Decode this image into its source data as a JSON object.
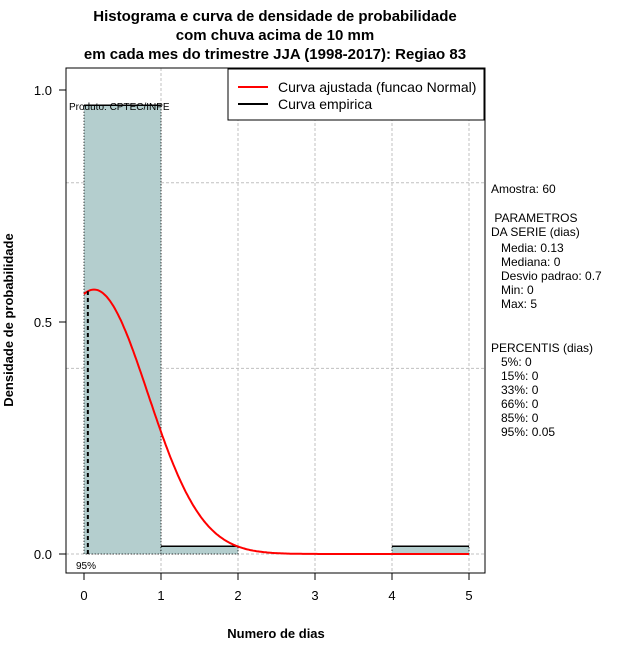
{
  "chart_data": {
    "type": "bar",
    "title": [
      "Histograma e curva de densidade de probabilidade",
      "com chuva acima de 10 mm",
      "em cada mes do trimestre JJA (1998-2017): Regiao 83"
    ],
    "xlabel": "Numero de dias",
    "ylabel": "Densidade de probabilidade",
    "xlim": [
      -0.25,
      5.2
    ],
    "ylim": [
      -0.04,
      1.04
    ],
    "xticks": [
      "0",
      "1",
      "2",
      "3",
      "4",
      "5"
    ],
    "yticks": [
      "0.0",
      "0.5",
      "1.0"
    ],
    "bins": [
      {
        "from": 0,
        "to": 1,
        "density": 0.967
      },
      {
        "from": 1,
        "to": 2,
        "density": 0.0167
      },
      {
        "from": 2,
        "to": 3,
        "density": 0
      },
      {
        "from": 3,
        "to": 4,
        "density": 0
      },
      {
        "from": 4,
        "to": 5,
        "density": 0.0167
      }
    ],
    "normal_fit": {
      "mean": 0.13,
      "sd": 0.7,
      "x_range": [
        0,
        5
      ]
    },
    "percentile_95_line": {
      "x": 0.05,
      "label": "95%"
    },
    "legend": [
      {
        "label": "Curva ajustada (funcao Normal)",
        "color": "#ff0000"
      },
      {
        "label": "Curva empirica",
        "color": "#000000"
      }
    ],
    "legend_position": "top-right",
    "credit": "Produto: CPTEC/INPE",
    "bar_color": "#b4cece"
  },
  "side": {
    "amostra": "Amostra: 60",
    "param_title": " PARAMETROS\nDA SERIE (dias)",
    "params": "   Media: 0.13\n   Mediana: 0\n   Desvio padrao: 0.7\n   Min: 0\n   Max: 5",
    "perc_title": "PERCENTIS (dias)",
    "percs": "   5%: 0\n   15%: 0\n   33%: 0\n   66%: 0\n   85%: 0\n   95%: 0.05"
  }
}
